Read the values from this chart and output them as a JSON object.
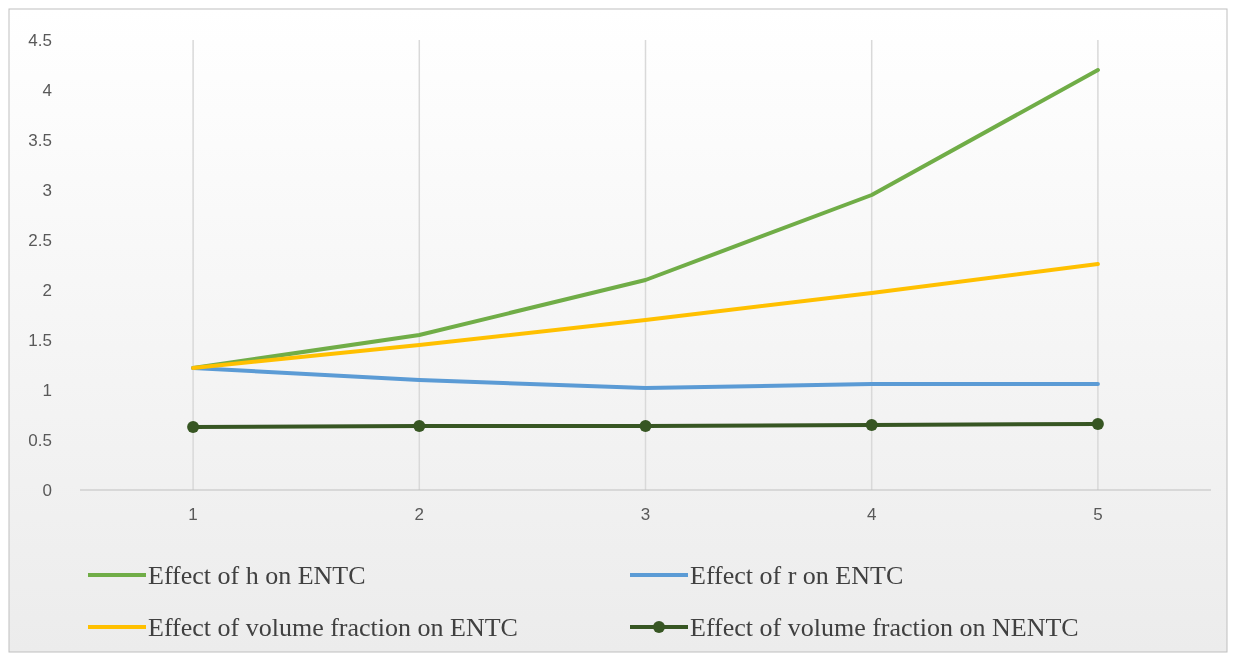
{
  "chart_data": {
    "type": "line",
    "categories": [
      "1",
      "2",
      "3",
      "4",
      "5"
    ],
    "series": [
      {
        "name": "Effect of h on ENTC",
        "color": "#70ad47",
        "values": [
          1.22,
          1.55,
          2.1,
          2.95,
          4.2
        ],
        "marker": "none"
      },
      {
        "name": "Effect of r on ENTC",
        "color": "#5b9bd5",
        "values": [
          1.22,
          1.1,
          1.02,
          1.06,
          1.06
        ],
        "marker": "none"
      },
      {
        "name": "Effect of volume fraction on ENTC",
        "color": "#ffc000",
        "values": [
          1.22,
          1.45,
          1.7,
          1.97,
          2.26
        ],
        "marker": "none"
      },
      {
        "name": "Effect of volume fraction on NENTC",
        "color": "#375623",
        "values": [
          0.63,
          0.64,
          0.64,
          0.65,
          0.66
        ],
        "marker": "circle"
      }
    ],
    "ylim": [
      0,
      4.5
    ],
    "yticks": [
      0,
      0.5,
      1,
      1.5,
      2,
      2.5,
      3,
      3.5,
      4,
      4.5
    ],
    "grid": "x",
    "legend": "bottom"
  }
}
